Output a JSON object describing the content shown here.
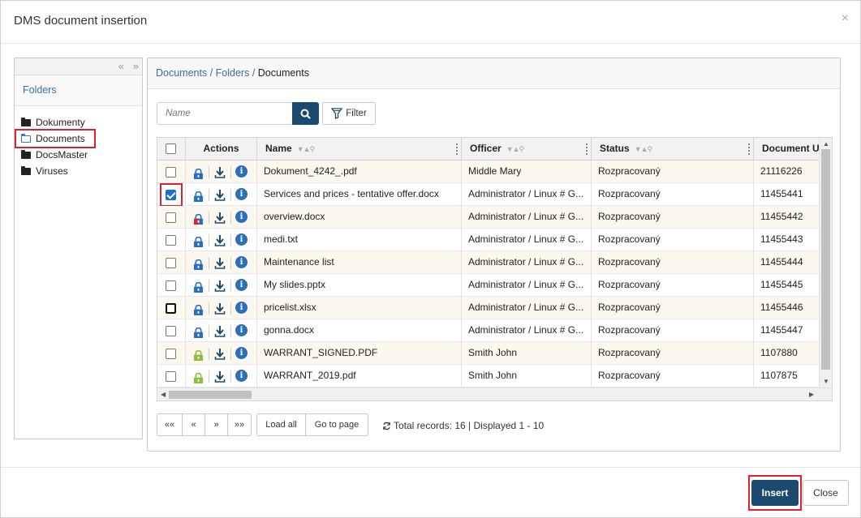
{
  "dialog": {
    "title": "DMS document insertion",
    "close_glyph": "×"
  },
  "left_panel": {
    "collapse_glyph": "«",
    "expand_glyph": "»",
    "header": "Folders",
    "folders": [
      {
        "label": "Dokumenty",
        "selected": false,
        "icon": "folder-icon"
      },
      {
        "label": "Documents",
        "selected": true,
        "icon": "folder-open-icon"
      },
      {
        "label": "DocsMaster",
        "selected": false,
        "icon": "folder-icon"
      },
      {
        "label": "Viruses",
        "selected": false,
        "icon": "folder-icon"
      }
    ]
  },
  "breadcrumb": {
    "part1": "Documents",
    "sep1": " / ",
    "part2": "Folders",
    "sep2": " / ",
    "current": "Documents"
  },
  "search": {
    "placeholder": "Name",
    "value": ""
  },
  "filter": {
    "label": "Filter"
  },
  "grid": {
    "columns": {
      "actions": "Actions",
      "name": "Name",
      "officer": "Officer",
      "status": "Status",
      "document": "Document U"
    },
    "sort_glyph": "▼▲⚲",
    "rows": [
      {
        "name": "Dokument_4242_.pdf",
        "officer": "Middle Mary",
        "status": "Rozpracovaný",
        "doc": "21116226",
        "checked": false,
        "lock": "blue"
      },
      {
        "name": "Services and prices - tentative offer.docx",
        "officer": "Administrator / Linux # G...",
        "status": "Rozpracovaný",
        "doc": "11455441",
        "checked": true,
        "lock": "blue"
      },
      {
        "name": "overview.docx",
        "officer": "Administrator / Linux # G...",
        "status": "Rozpracovaný",
        "doc": "11455442",
        "checked": false,
        "lock": "red"
      },
      {
        "name": "medi.txt",
        "officer": "Administrator / Linux # G...",
        "status": "Rozpracovaný",
        "doc": "11455443",
        "checked": false,
        "lock": "blue"
      },
      {
        "name": "Maintenance list",
        "officer": "Administrator / Linux # G...",
        "status": "Rozpracovaný",
        "doc": "11455444",
        "checked": false,
        "lock": "blue"
      },
      {
        "name": "My slides.pptx",
        "officer": "Administrator / Linux # G...",
        "status": "Rozpracovaný",
        "doc": "11455445",
        "checked": false,
        "lock": "blue"
      },
      {
        "name": "pricelist.xlsx",
        "officer": "Administrator / Linux # G...",
        "status": "Rozpracovaný",
        "doc": "11455446",
        "checked": false,
        "lock": "blue",
        "focused": true
      },
      {
        "name": "gonna.docx",
        "officer": "Administrator / Linux # G...",
        "status": "Rozpracovaný",
        "doc": "11455447",
        "checked": false,
        "lock": "blue"
      },
      {
        "name": "WARRANT_SIGNED.PDF",
        "officer": "Smith John",
        "status": "Rozpracovaný",
        "doc": "1107880",
        "checked": false,
        "lock": "green"
      },
      {
        "name": "WARRANT_2019.pdf",
        "officer": "Smith John",
        "status": "Rozpracovaný",
        "doc": "1107875",
        "checked": false,
        "lock": "green"
      }
    ]
  },
  "pager": {
    "first": "««",
    "prev": "«",
    "next": "»",
    "last": "»»",
    "load_all": "Load all",
    "go_to_page": "Go to page",
    "records": "Total records: 16 | Displayed 1 - 10"
  },
  "footer": {
    "insert": "Insert",
    "close": "Close"
  },
  "colors": {
    "primary": "#1c4a6e",
    "link": "#3a6ea0",
    "highlight": "#d9232f",
    "lock_blue": "#2a6fb8",
    "lock_red": "#d9232f",
    "lock_green": "#8bbf3c"
  }
}
